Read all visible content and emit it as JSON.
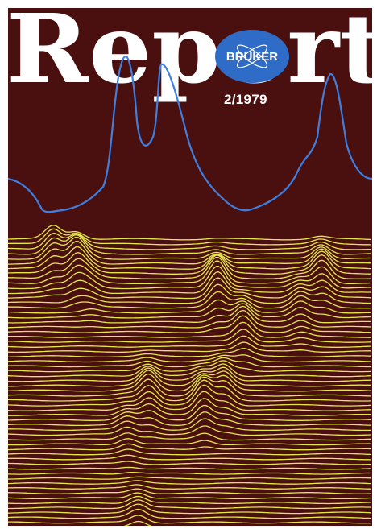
{
  "cover": {
    "title": "Report",
    "issue": "2/1979",
    "logo_text": "BRUKER",
    "colors": {
      "background": "#4a1010",
      "title": "#ffffff",
      "logo_fill": "#2e6cc8",
      "spectrum_trace": "#3f7fe0",
      "stacked_traces": "#e6e64a"
    },
    "logo_icon": "atom-orbit-icon"
  }
}
